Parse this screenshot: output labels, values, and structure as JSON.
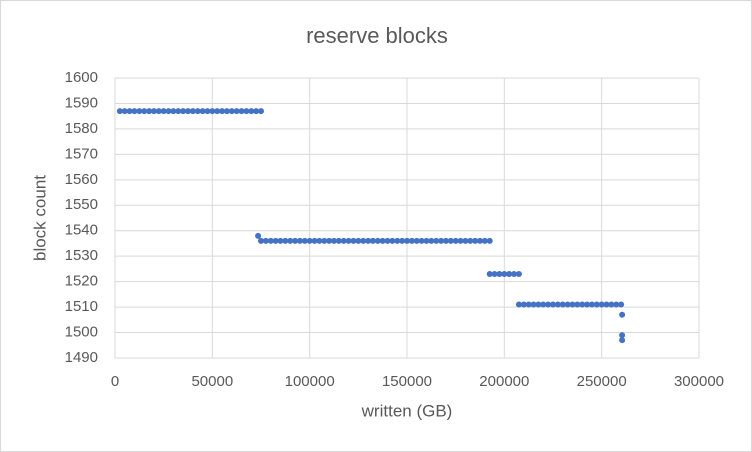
{
  "chart_data": {
    "type": "scatter",
    "title": "reserve blocks",
    "x_label": "written (GB)",
    "y_label": "block count",
    "color": "#4472c4",
    "grid": true,
    "xlim": [
      0,
      300000
    ],
    "xticks": [
      0,
      50000,
      100000,
      150000,
      200000,
      250000,
      300000
    ],
    "ylim": [
      1490,
      1600
    ],
    "yticks": [
      1490,
      1500,
      1510,
      1520,
      1530,
      1540,
      1550,
      1560,
      1570,
      1580,
      1590,
      1600
    ],
    "x": [
      2500,
      5000,
      7500,
      10000,
      12500,
      15000,
      17500,
      20000,
      22500,
      25000,
      27500,
      30000,
      32500,
      35000,
      37500,
      40000,
      42500,
      45000,
      47500,
      50000,
      52500,
      55000,
      57500,
      60000,
      62500,
      65000,
      67500,
      70000,
      72500,
      75000,
      73500,
      75000,
      77500,
      80000,
      82500,
      85000,
      87500,
      90000,
      92500,
      95000,
      97500,
      100000,
      102500,
      105000,
      107500,
      110000,
      112500,
      115000,
      117500,
      120000,
      122500,
      125000,
      127500,
      130000,
      132500,
      135000,
      137500,
      140000,
      142500,
      145000,
      147500,
      150000,
      152500,
      155000,
      157500,
      160000,
      162500,
      165000,
      167500,
      170000,
      172500,
      175000,
      177500,
      180000,
      182500,
      185000,
      187500,
      190000,
      192500,
      192500,
      195000,
      197500,
      200000,
      202500,
      205000,
      207500,
      207500,
      210000,
      212500,
      215000,
      217500,
      220000,
      222500,
      225000,
      227500,
      230000,
      232500,
      235000,
      237500,
      240000,
      242500,
      245000,
      247500,
      250000,
      252500,
      255000,
      257500,
      260000,
      260500,
      260500,
      260500
    ],
    "values": [
      1587,
      1587,
      1587,
      1587,
      1587,
      1587,
      1587,
      1587,
      1587,
      1587,
      1587,
      1587,
      1587,
      1587,
      1587,
      1587,
      1587,
      1587,
      1587,
      1587,
      1587,
      1587,
      1587,
      1587,
      1587,
      1587,
      1587,
      1587,
      1587,
      1587,
      1538,
      1536,
      1536,
      1536,
      1536,
      1536,
      1536,
      1536,
      1536,
      1536,
      1536,
      1536,
      1536,
      1536,
      1536,
      1536,
      1536,
      1536,
      1536,
      1536,
      1536,
      1536,
      1536,
      1536,
      1536,
      1536,
      1536,
      1536,
      1536,
      1536,
      1536,
      1536,
      1536,
      1536,
      1536,
      1536,
      1536,
      1536,
      1536,
      1536,
      1536,
      1536,
      1536,
      1536,
      1536,
      1536,
      1536,
      1536,
      1536,
      1523,
      1523,
      1523,
      1523,
      1523,
      1523,
      1523,
      1511,
      1511,
      1511,
      1511,
      1511,
      1511,
      1511,
      1511,
      1511,
      1511,
      1511,
      1511,
      1511,
      1511,
      1511,
      1511,
      1511,
      1511,
      1511,
      1511,
      1511,
      1511,
      1507,
      1499,
      1497
    ]
  }
}
